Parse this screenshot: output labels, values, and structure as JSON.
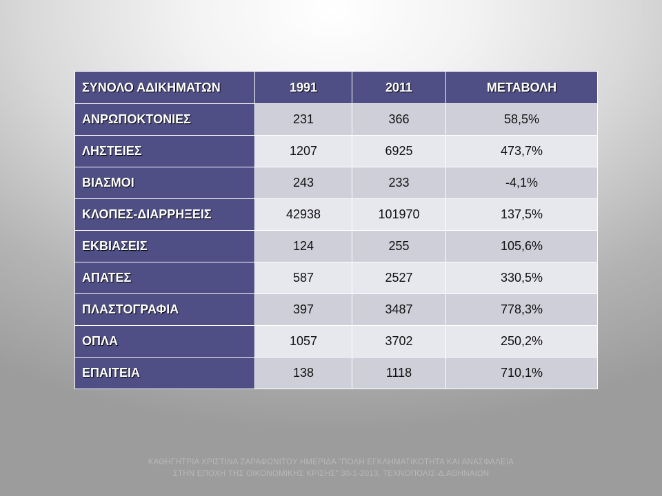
{
  "table": {
    "headers": [
      "ΣΥΝΟΛΟ ΑΔΙΚΗΜΑΤΩΝ",
      "1991",
      "2011",
      "ΜΕΤΑΒΟΛΗ"
    ],
    "rows": [
      {
        "label": "ΑΝΡΩΠΟΚΤΟΝΙΕΣ",
        "y1991": "231",
        "y2011": "366",
        "change": "58,5%"
      },
      {
        "label": "ΛΗΣΤΕΙΕΣ",
        "y1991": "1207",
        "y2011": "6925",
        "change": "473,7%"
      },
      {
        "label": "ΒΙΑΣΜΟΙ",
        "y1991": "243",
        "y2011": "233",
        "change": "-4,1%"
      },
      {
        "label": "ΚΛΟΠΕΣ-ΔΙΑΡΡΗΞΕΙΣ",
        "y1991": "42938",
        "y2011": "101970",
        "change": "137,5%"
      },
      {
        "label": "ΕΚΒΙΑΣΕΙΣ",
        "y1991": "124",
        "y2011": "255",
        "change": "105,6%"
      },
      {
        "label": "ΑΠΑΤΕΣ",
        "y1991": "587",
        "y2011": "2527",
        "change": "330,5%"
      },
      {
        "label": "ΠΛΑΣΤΟΓΡΑΦΙΑ",
        "y1991": "397",
        "y2011": "3487",
        "change": "778,3%"
      },
      {
        "label": "ΟΠΛΑ",
        "y1991": "1057",
        "y2011": "3702",
        "change": "250,2%"
      },
      {
        "label": "ΕΠΑΙΤΕΙΑ",
        "y1991": "138",
        "y2011": "1118",
        "change": "710,1%"
      }
    ]
  },
  "footer": {
    "line1": "ΚΑΘΗΓΗΤΡΙΑ ΧΡΙΣΤΙΝΑ ΖΑΡΑΦΩΝΙΤΟΥ ΗΜΕΡΙΔΑ \"ΠΟΛΗ ΕΓΚΛΗΜΑΤΙΚΟΤΗΤΑ ΚΑΙ ΑΝΑΣΦΑΛΕΙΑ",
    "line2": "ΣΤΗΝ ΕΠΟΧΗ ΤΗΣ ΟΙΚΟΝΟΜΙΚΗΣ ΚΡΙΣΗΣ\" 30-1-2013, ΤΕΧΝΟΠΟΛΙΣ-Δ.ΑΘΗΝΑΙΩΝ"
  },
  "colors": {
    "header_fill": "#4f4f86",
    "row_odd": "#cfcfd9",
    "row_even": "#e7e7ee"
  }
}
